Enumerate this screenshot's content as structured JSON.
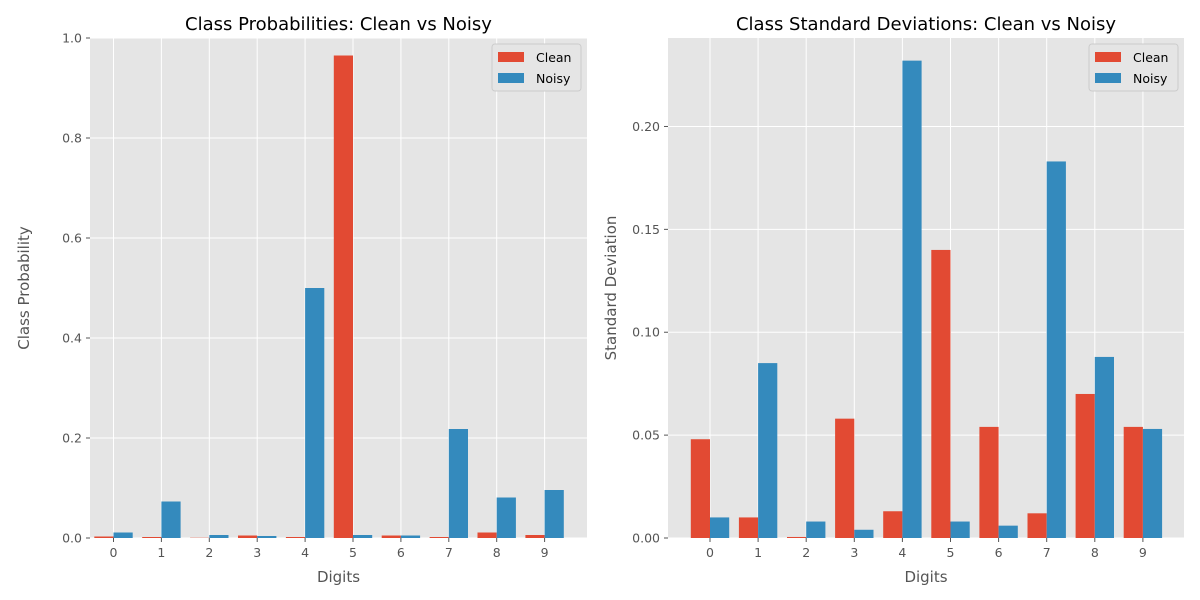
{
  "colors": {
    "clean": "#E24A33",
    "noisy": "#348ABD",
    "panel": "#E5E5E5",
    "grid": "#FFFFFF",
    "text": "#555555"
  },
  "chart_data": [
    {
      "type": "bar",
      "title": "Class Probabilities: Clean vs Noisy",
      "xlabel": "Digits",
      "ylabel": "Class Probability",
      "categories": [
        "0",
        "1",
        "2",
        "3",
        "4",
        "5",
        "6",
        "7",
        "8",
        "9"
      ],
      "ylim": [
        0,
        1.0
      ],
      "yticks": [
        0.0,
        0.2,
        0.4,
        0.6,
        0.8,
        1.0
      ],
      "ytick_labels": [
        "0.0",
        "0.2",
        "0.4",
        "0.6",
        "0.8",
        "1.0"
      ],
      "grid": true,
      "legend": "top-right",
      "series": [
        {
          "name": "Clean",
          "values": [
            0.003,
            0.002,
            0.0005,
            0.005,
            0.002,
            0.965,
            0.005,
            0.002,
            0.011,
            0.006
          ]
        },
        {
          "name": "Noisy",
          "values": [
            0.011,
            0.073,
            0.006,
            0.004,
            0.5,
            0.006,
            0.005,
            0.218,
            0.081,
            0.096
          ]
        }
      ]
    },
    {
      "type": "bar",
      "title": "Class Standard Deviations: Clean vs Noisy",
      "xlabel": "Digits",
      "ylabel": "Standard Deviation",
      "categories": [
        "0",
        "1",
        "2",
        "3",
        "4",
        "5",
        "6",
        "7",
        "8",
        "9"
      ],
      "ylim": [
        0,
        0.243
      ],
      "yticks": [
        0.0,
        0.05,
        0.1,
        0.15,
        0.2
      ],
      "ytick_labels": [
        "0.00",
        "0.05",
        "0.10",
        "0.15",
        "0.20"
      ],
      "grid": true,
      "legend": "top-right",
      "series": [
        {
          "name": "Clean",
          "values": [
            0.048,
            0.01,
            0.0005,
            0.058,
            0.013,
            0.14,
            0.054,
            0.012,
            0.07,
            0.054
          ]
        },
        {
          "name": "Noisy",
          "values": [
            0.01,
            0.085,
            0.008,
            0.004,
            0.232,
            0.008,
            0.006,
            0.183,
            0.088,
            0.053
          ]
        }
      ]
    }
  ]
}
